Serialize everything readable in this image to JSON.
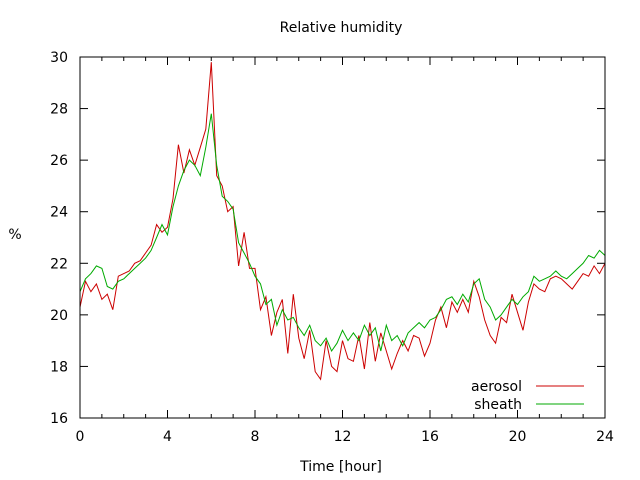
{
  "chart_data": {
    "type": "line",
    "title": "Relative humidity",
    "xlabel": "Time [hour]",
    "ylabel": "%",
    "xlim": [
      0,
      24
    ],
    "ylim": [
      16,
      30
    ],
    "xticks": [
      0,
      4,
      8,
      12,
      16,
      20,
      24
    ],
    "yticks": [
      16,
      18,
      20,
      22,
      24,
      26,
      28,
      30
    ],
    "xtick_labels": [
      "0",
      "4",
      "8",
      "12",
      "16",
      "20",
      "24"
    ],
    "ytick_labels": [
      "16",
      "18",
      "20",
      "22",
      "24",
      "26",
      "28",
      "30"
    ],
    "grid": false,
    "legend_position": "bottom-right",
    "series": [
      {
        "name": "aerosol",
        "color": "#cc0000",
        "x": [
          0,
          0.25,
          0.5,
          0.75,
          1,
          1.25,
          1.5,
          1.75,
          2,
          2.25,
          2.5,
          2.75,
          3,
          3.25,
          3.5,
          3.75,
          4,
          4.25,
          4.5,
          4.75,
          5,
          5.25,
          5.5,
          5.75,
          6,
          6.25,
          6.5,
          6.75,
          7,
          7.25,
          7.5,
          7.75,
          8,
          8.25,
          8.5,
          8.75,
          9,
          9.25,
          9.5,
          9.75,
          10,
          10.25,
          10.5,
          10.75,
          11,
          11.25,
          11.5,
          11.75,
          12,
          12.25,
          12.5,
          12.75,
          13,
          13.25,
          13.5,
          13.75,
          14,
          14.25,
          14.5,
          14.75,
          15,
          15.25,
          15.5,
          15.75,
          16,
          16.25,
          16.5,
          16.75,
          17,
          17.25,
          17.5,
          17.75,
          18,
          18.25,
          18.5,
          18.75,
          19,
          19.25,
          19.5,
          19.75,
          20,
          20.25,
          20.5,
          20.75,
          21,
          21.25,
          21.5,
          21.75,
          22,
          22.25,
          22.5,
          22.75,
          23,
          23.25,
          23.5,
          23.75,
          24
        ],
        "y": [
          20.3,
          21.3,
          20.9,
          21.2,
          20.6,
          20.8,
          20.2,
          21.5,
          21.6,
          21.7,
          22.0,
          22.1,
          22.4,
          22.7,
          23.5,
          23.2,
          23.4,
          24.5,
          26.6,
          25.5,
          26.4,
          25.8,
          26.5,
          27.2,
          29.8,
          25.4,
          25.0,
          24.0,
          24.2,
          21.9,
          23.2,
          21.8,
          21.8,
          20.2,
          20.7,
          19.2,
          20.1,
          20.6,
          18.5,
          20.8,
          19.1,
          18.3,
          19.4,
          17.8,
          17.5,
          19.0,
          18.0,
          17.8,
          19.0,
          18.3,
          18.2,
          19.2,
          17.9,
          19.7,
          18.2,
          19.3,
          18.6,
          17.9,
          18.5,
          19.0,
          18.6,
          19.2,
          19.1,
          18.4,
          18.9,
          19.8,
          20.3,
          19.5,
          20.5,
          20.1,
          20.6,
          20.1,
          21.3,
          20.7,
          19.8,
          19.2,
          18.9,
          19.9,
          19.7,
          20.8,
          20.1,
          19.4,
          20.5,
          21.2,
          21.0,
          20.9,
          21.4,
          21.5,
          21.4,
          21.2,
          21.0,
          21.3,
          21.6,
          21.5,
          21.9,
          21.6,
          22.0
        ]
      },
      {
        "name": "sheath",
        "color": "#00aa00",
        "x": [
          0,
          0.25,
          0.5,
          0.75,
          1,
          1.25,
          1.5,
          1.75,
          2,
          2.25,
          2.5,
          2.75,
          3,
          3.25,
          3.5,
          3.75,
          4,
          4.25,
          4.5,
          4.75,
          5,
          5.25,
          5.5,
          5.75,
          6,
          6.25,
          6.5,
          6.75,
          7,
          7.25,
          7.5,
          7.75,
          8,
          8.25,
          8.5,
          8.75,
          9,
          9.25,
          9.5,
          9.75,
          10,
          10.25,
          10.5,
          10.75,
          11,
          11.25,
          11.5,
          11.75,
          12,
          12.25,
          12.5,
          12.75,
          13,
          13.25,
          13.5,
          13.75,
          14,
          14.25,
          14.5,
          14.75,
          15,
          15.25,
          15.5,
          15.75,
          16,
          16.25,
          16.5,
          16.75,
          17,
          17.25,
          17.5,
          17.75,
          18,
          18.25,
          18.5,
          18.75,
          19,
          19.25,
          19.5,
          19.75,
          20,
          20.25,
          20.5,
          20.75,
          21,
          21.25,
          21.5,
          21.75,
          22,
          22.25,
          22.5,
          22.75,
          23,
          23.25,
          23.5,
          23.75,
          24
        ],
        "y": [
          20.9,
          21.4,
          21.6,
          21.9,
          21.8,
          21.1,
          21.0,
          21.3,
          21.4,
          21.6,
          21.8,
          22.0,
          22.2,
          22.5,
          23.0,
          23.5,
          23.1,
          24.2,
          25.0,
          25.6,
          26.0,
          25.8,
          25.4,
          26.5,
          27.8,
          25.8,
          24.6,
          24.4,
          24.1,
          22.8,
          22.4,
          22.0,
          21.5,
          21.2,
          20.4,
          20.6,
          19.6,
          20.2,
          19.8,
          19.9,
          19.5,
          19.2,
          19.6,
          19.0,
          18.8,
          19.1,
          18.6,
          18.9,
          19.4,
          19.0,
          19.3,
          19.0,
          19.6,
          19.2,
          19.5,
          18.6,
          19.6,
          19.0,
          19.2,
          18.8,
          19.3,
          19.5,
          19.7,
          19.5,
          19.8,
          19.9,
          20.2,
          20.6,
          20.7,
          20.4,
          20.8,
          20.5,
          21.2,
          21.4,
          20.6,
          20.3,
          19.8,
          20.0,
          20.3,
          20.6,
          20.4,
          20.7,
          20.9,
          21.5,
          21.3,
          21.4,
          21.5,
          21.7,
          21.5,
          21.4,
          21.6,
          21.8,
          22.0,
          22.3,
          22.2,
          22.5,
          22.3
        ]
      }
    ]
  }
}
